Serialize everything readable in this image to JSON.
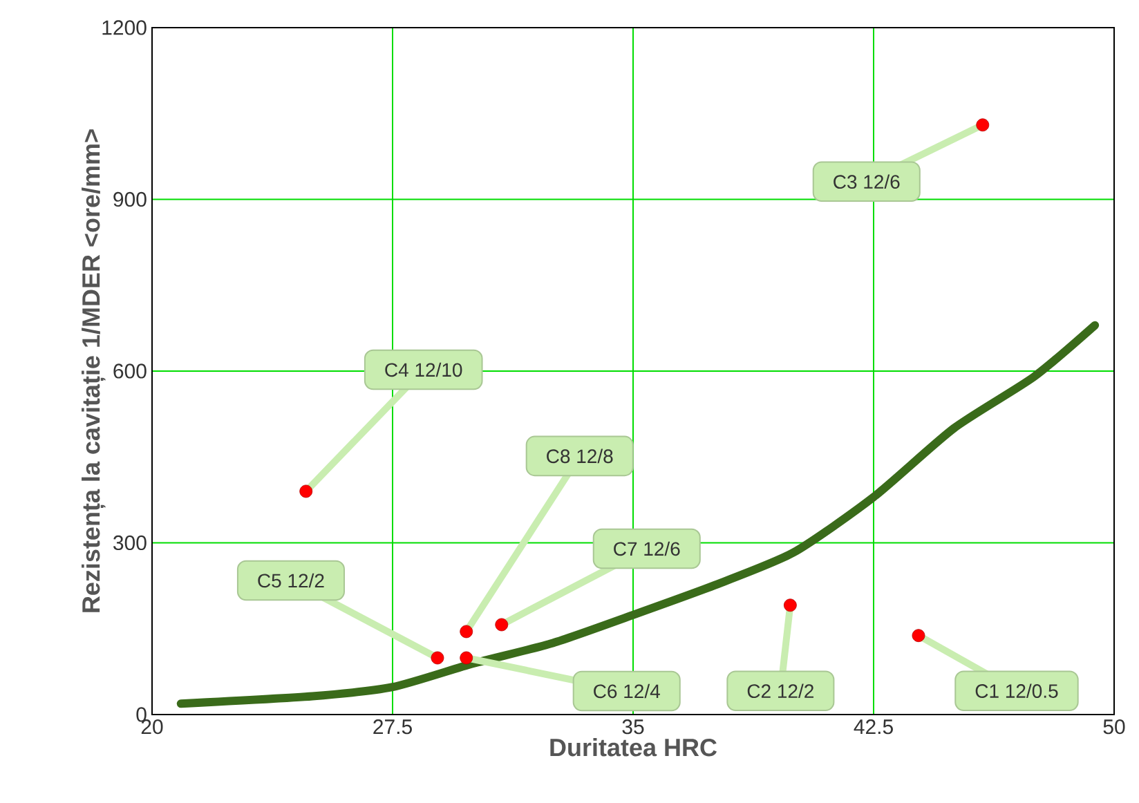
{
  "chart_data": {
    "type": "scatter",
    "xlabel": "Duritatea HRC",
    "ylabel": "Rezistența la cavitație 1/MDER <ore/mm>",
    "xlim": [
      20,
      50
    ],
    "ylim": [
      0,
      1200
    ],
    "xticks": [
      20,
      27.5,
      35,
      42.5,
      50
    ],
    "yticks": [
      0,
      300,
      600,
      900,
      1200
    ],
    "grid": true,
    "marker": "circle",
    "series": [
      {
        "type": "scatter",
        "color": "#ff0000",
        "x": [
          43.9,
          39.9,
          45.9,
          24.8,
          28.9,
          29.8,
          30.9,
          29.8
        ],
        "values": [
          138,
          191,
          1030,
          390,
          99,
          99,
          157,
          145
        ]
      },
      {
        "type": "line",
        "marker": "none",
        "color": "#3a6b1a",
        "x": [
          20.9,
          25,
          27.5,
          30,
          32.5,
          35,
          37.5,
          40,
          42.5,
          45,
          47.5,
          49.4
        ],
        "values": [
          19,
          32,
          48,
          89,
          125,
          174,
          225,
          283,
          380,
          500,
          590,
          680
        ]
      }
    ],
    "annotations": [
      {
        "text": "C1 12/0.5",
        "x": 43.9,
        "y": 138
      },
      {
        "text": "C2 12/2",
        "x": 39.9,
        "y": 191
      },
      {
        "text": "C3 12/6",
        "x": 45.9,
        "y": 1030
      },
      {
        "text": "C4 12/10",
        "x": 24.8,
        "y": 390
      },
      {
        "text": "C5 12/2",
        "x": 28.9,
        "y": 99
      },
      {
        "text": "C6 12/4",
        "x": 29.8,
        "y": 99
      },
      {
        "text": "C7 12/6",
        "x": 30.9,
        "y": 157
      },
      {
        "text": "C8 12/8",
        "x": 29.8,
        "y": 145
      }
    ]
  }
}
